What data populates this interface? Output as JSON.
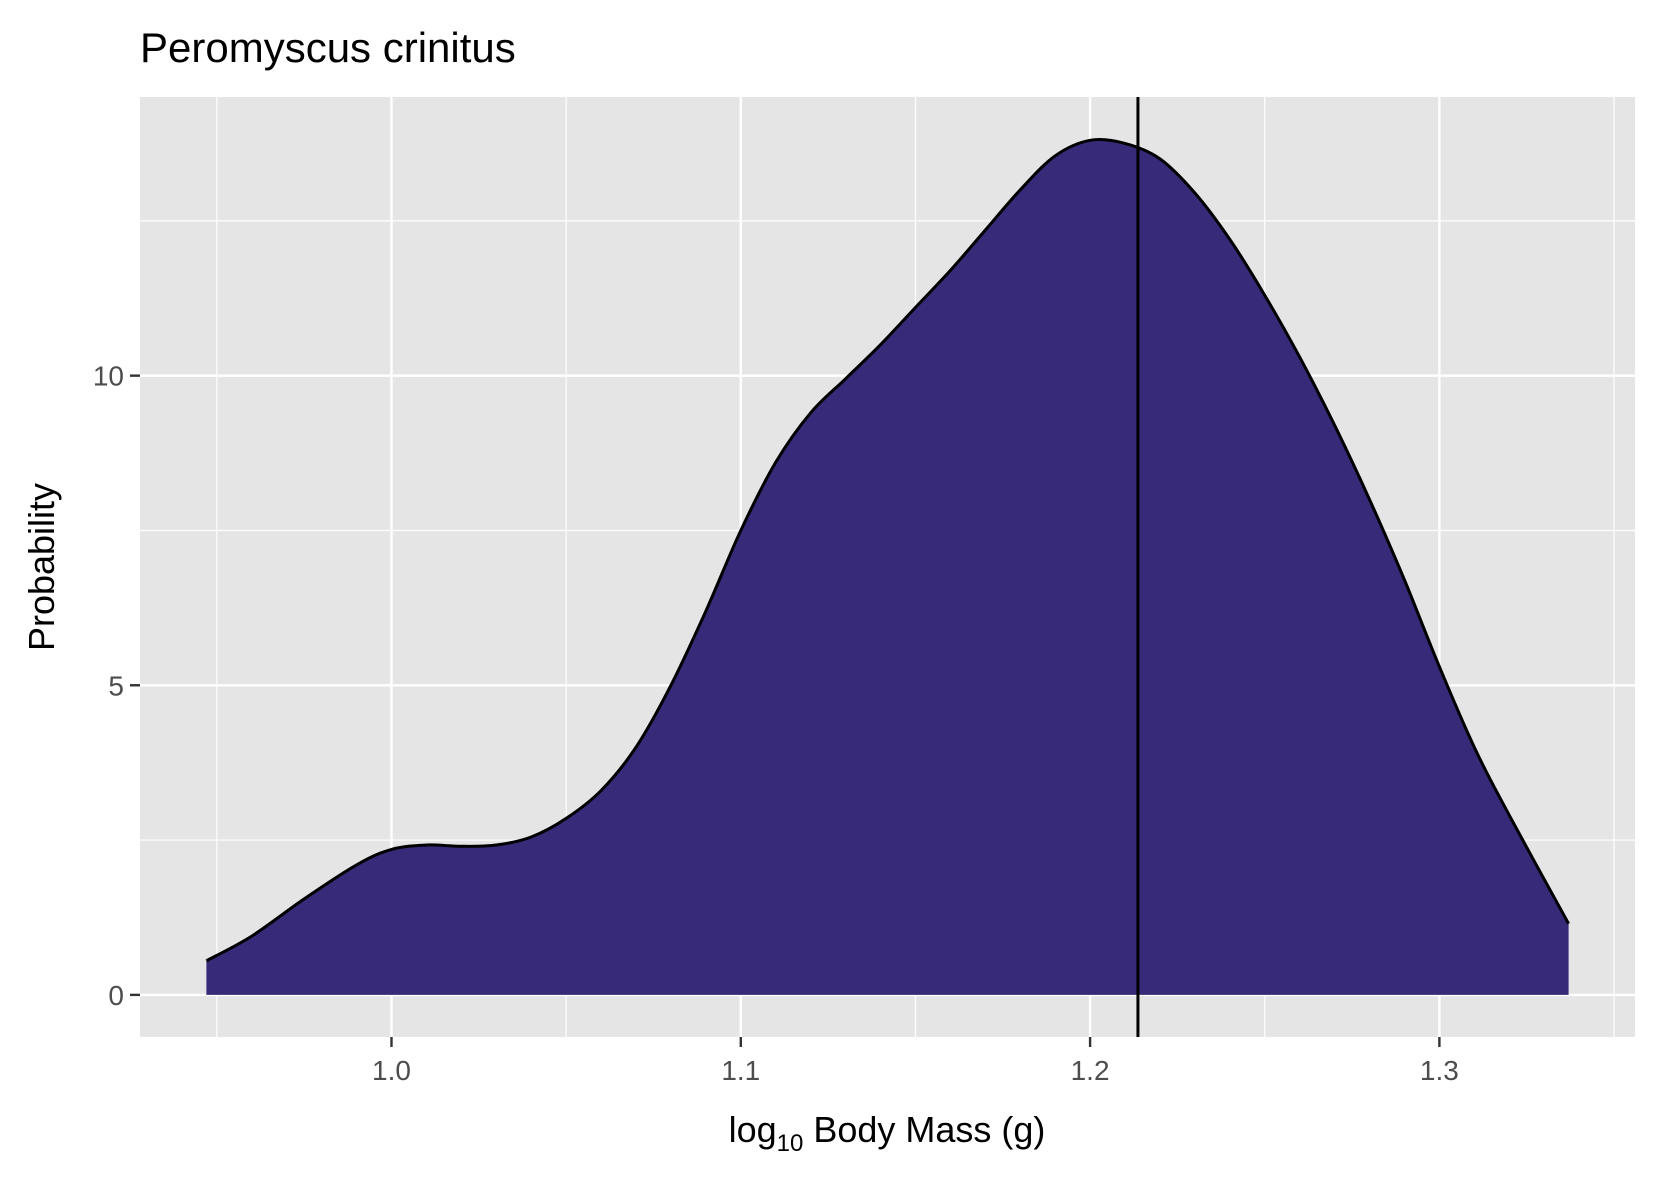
{
  "chart_data": {
    "type": "area",
    "title": "Peromyscus crinitus",
    "xlabel": {
      "prefix": "log",
      "subscript": "10",
      "suffix": " Body Mass (g)"
    },
    "ylabel": "Probability",
    "xlim": [
      0.928,
      1.356
    ],
    "ylim": [
      -0.68,
      14.5
    ],
    "x_ticks": [
      {
        "value": 1.0,
        "label": "1.0"
      },
      {
        "value": 1.1,
        "label": "1.1"
      },
      {
        "value": 1.2,
        "label": "1.2"
      },
      {
        "value": 1.3,
        "label": "1.3"
      }
    ],
    "x_minor_ticks": [
      0.95,
      1.05,
      1.15,
      1.25,
      1.35
    ],
    "y_ticks": [
      {
        "value": 0,
        "label": "0"
      },
      {
        "value": 5,
        "label": "5"
      },
      {
        "value": 10,
        "label": "10"
      }
    ],
    "y_minor_ticks": [
      2.5,
      7.5,
      12.5
    ],
    "grid": true,
    "vline_x": 1.2137,
    "series": [
      {
        "fill": "#372a78",
        "line_color": "#000000",
        "x": [
          0.947,
          0.96,
          0.975,
          0.99,
          1.0,
          1.01,
          1.02,
          1.03,
          1.04,
          1.05,
          1.06,
          1.07,
          1.08,
          1.09,
          1.1,
          1.11,
          1.12,
          1.13,
          1.14,
          1.15,
          1.16,
          1.17,
          1.18,
          1.19,
          1.2,
          1.21,
          1.22,
          1.23,
          1.24,
          1.25,
          1.26,
          1.27,
          1.28,
          1.29,
          1.3,
          1.31,
          1.32,
          1.337
        ],
        "y": [
          0.55,
          0.95,
          1.55,
          2.1,
          2.35,
          2.42,
          2.4,
          2.42,
          2.55,
          2.85,
          3.3,
          4.0,
          5.0,
          6.2,
          7.5,
          8.6,
          9.4,
          9.95,
          10.5,
          11.1,
          11.7,
          12.35,
          13.0,
          13.55,
          13.8,
          13.75,
          13.5,
          12.95,
          12.2,
          11.3,
          10.3,
          9.2,
          8.0,
          6.7,
          5.3,
          4.0,
          2.9,
          1.15
        ]
      }
    ]
  }
}
